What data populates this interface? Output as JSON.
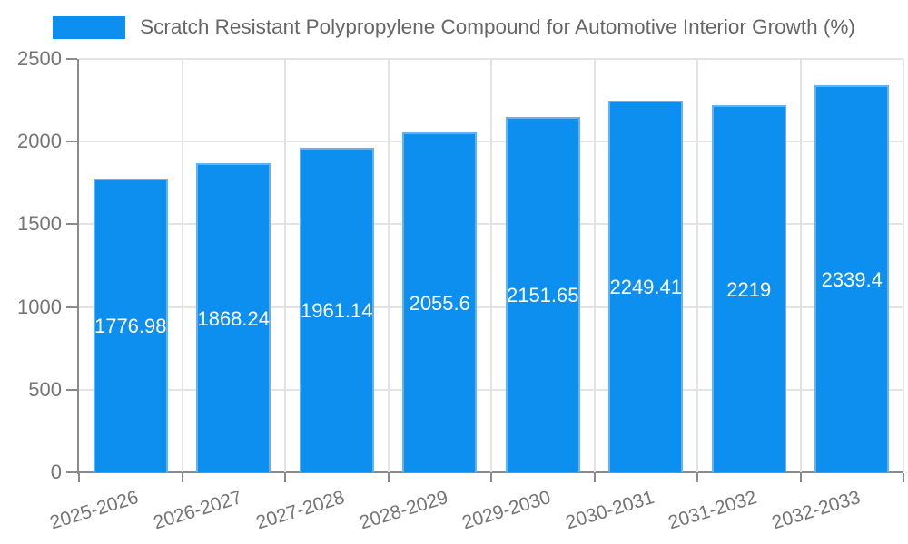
{
  "colors": {
    "bar_fill": "#0d8ff0",
    "bar_border": "#63b2f5",
    "grid": "#e3e3e3",
    "axis": "#8a8a8a",
    "tick_text": "#757575",
    "legend_text": "#666666",
    "value_text": "#ffffff",
    "background": "#ffffff"
  },
  "chart_data": {
    "type": "bar",
    "title": "Scratch Resistant Polypropylene Compound for Automotive Interior Growth (%)",
    "categories": [
      "2025-2026",
      "2026-2027",
      "2027-2028",
      "2028-2029",
      "2029-2030",
      "2030-2031",
      "2031-2032",
      "2032-2033"
    ],
    "series": [
      {
        "name": "Scratch Resistant Polypropylene Compound for Automotive Interior Growth (%)",
        "values": [
          1776.98,
          1868.24,
          1961.14,
          2055.6,
          2151.65,
          2249.41,
          2219,
          2339.4
        ]
      }
    ],
    "xlabel": "",
    "ylabel": "",
    "ylim": [
      0,
      2500
    ],
    "yticks": [
      0,
      500,
      1000,
      1500,
      2000,
      2500
    ],
    "grid": true,
    "legend_position": "top",
    "value_labels_shown": true,
    "value_label_position": "center-of-bar"
  }
}
